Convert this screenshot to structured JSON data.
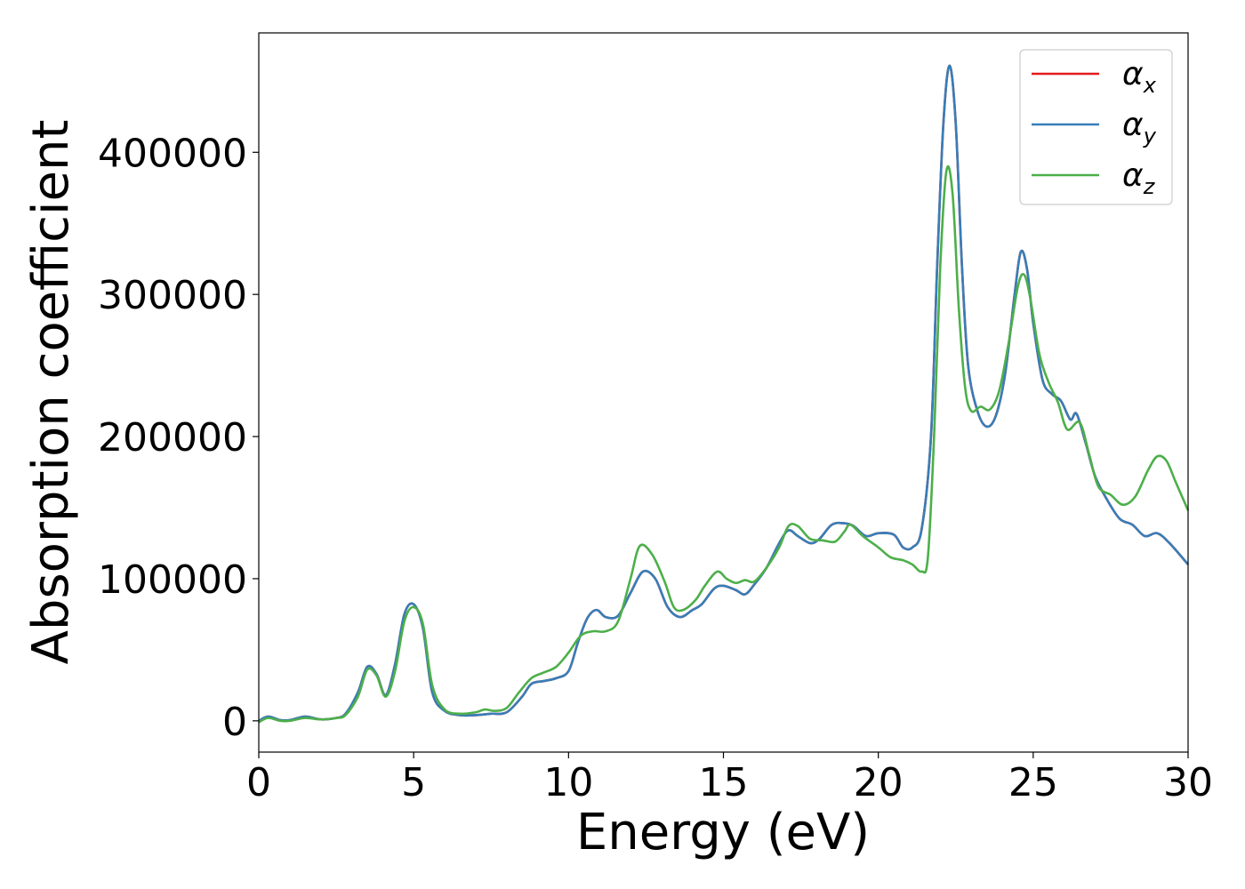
{
  "chart_data": {
    "type": "line",
    "xlabel": "Energy (eV)",
    "ylabel": "Absorption coefficient",
    "xlim": [
      0,
      30
    ],
    "ylim": [
      -22000,
      484000
    ],
    "xticks": [
      0,
      5,
      10,
      15,
      20,
      25,
      30
    ],
    "xtick_labels": [
      "0",
      "5",
      "10",
      "15",
      "20",
      "25",
      "30"
    ],
    "yticks": [
      0,
      100000,
      200000,
      300000,
      400000
    ],
    "ytick_labels": [
      "0",
      "100000",
      "200000",
      "300000",
      "400000"
    ],
    "grid": false,
    "legend_position": "top-right",
    "series": [
      {
        "name": "α",
        "subscript": "x",
        "color": "#e41a1c",
        "points": [
          [
            0,
            0
          ],
          [
            0.3,
            3000
          ],
          [
            0.7,
            500
          ],
          [
            1.0,
            500
          ],
          [
            1.5,
            3000
          ],
          [
            2.0,
            1000
          ],
          [
            2.5,
            2000
          ],
          [
            2.8,
            5000
          ],
          [
            3.2,
            20000
          ],
          [
            3.5,
            38000
          ],
          [
            3.8,
            33000
          ],
          [
            4.1,
            18000
          ],
          [
            4.4,
            40000
          ],
          [
            4.7,
            75000
          ],
          [
            5.0,
            82000
          ],
          [
            5.3,
            65000
          ],
          [
            5.6,
            20000
          ],
          [
            6.0,
            7000
          ],
          [
            6.5,
            4000
          ],
          [
            7.0,
            4000
          ],
          [
            7.5,
            5000
          ],
          [
            8.0,
            6000
          ],
          [
            8.5,
            17000
          ],
          [
            8.8,
            26000
          ],
          [
            9.2,
            28000
          ],
          [
            9.6,
            30000
          ],
          [
            10.0,
            35000
          ],
          [
            10.3,
            55000
          ],
          [
            10.6,
            72000
          ],
          [
            10.9,
            78000
          ],
          [
            11.2,
            73000
          ],
          [
            11.6,
            74000
          ],
          [
            12.0,
            90000
          ],
          [
            12.4,
            105000
          ],
          [
            12.8,
            100000
          ],
          [
            13.2,
            80000
          ],
          [
            13.6,
            73000
          ],
          [
            14.0,
            78000
          ],
          [
            14.3,
            82000
          ],
          [
            14.7,
            93000
          ],
          [
            15.0,
            95000
          ],
          [
            15.4,
            92000
          ],
          [
            15.7,
            89000
          ],
          [
            16.0,
            96000
          ],
          [
            16.4,
            108000
          ],
          [
            16.8,
            125000
          ],
          [
            17.1,
            134000
          ],
          [
            17.4,
            130000
          ],
          [
            17.8,
            125000
          ],
          [
            18.1,
            128000
          ],
          [
            18.5,
            138000
          ],
          [
            18.9,
            139000
          ],
          [
            19.2,
            137000
          ],
          [
            19.6,
            130000
          ],
          [
            20.0,
            132000
          ],
          [
            20.5,
            131000
          ],
          [
            20.8,
            122000
          ],
          [
            21.1,
            122000
          ],
          [
            21.4,
            135000
          ],
          [
            21.7,
            200000
          ],
          [
            21.9,
            320000
          ],
          [
            22.1,
            420000
          ],
          [
            22.3,
            461000
          ],
          [
            22.5,
            420000
          ],
          [
            22.7,
            320000
          ],
          [
            22.9,
            250000
          ],
          [
            23.2,
            218000
          ],
          [
            23.5,
            207000
          ],
          [
            23.8,
            215000
          ],
          [
            24.1,
            245000
          ],
          [
            24.4,
            300000
          ],
          [
            24.6,
            330000
          ],
          [
            24.8,
            318000
          ],
          [
            25.0,
            280000
          ],
          [
            25.3,
            240000
          ],
          [
            25.6,
            230000
          ],
          [
            25.9,
            225000
          ],
          [
            26.2,
            212000
          ],
          [
            26.4,
            216000
          ],
          [
            26.7,
            195000
          ],
          [
            27.0,
            172000
          ],
          [
            27.4,
            155000
          ],
          [
            27.8,
            142000
          ],
          [
            28.2,
            138000
          ],
          [
            28.6,
            130000
          ],
          [
            29.0,
            132000
          ],
          [
            29.4,
            125000
          ],
          [
            30.0,
            110000
          ]
        ]
      },
      {
        "name": "α",
        "subscript": "y",
        "color": "#377eb8",
        "points": [
          [
            0,
            0
          ],
          [
            0.3,
            3000
          ],
          [
            0.7,
            500
          ],
          [
            1.0,
            500
          ],
          [
            1.5,
            3000
          ],
          [
            2.0,
            1000
          ],
          [
            2.5,
            2000
          ],
          [
            2.8,
            5000
          ],
          [
            3.2,
            20000
          ],
          [
            3.5,
            38000
          ],
          [
            3.8,
            33000
          ],
          [
            4.1,
            18000
          ],
          [
            4.4,
            40000
          ],
          [
            4.7,
            75000
          ],
          [
            5.0,
            82000
          ],
          [
            5.3,
            65000
          ],
          [
            5.6,
            20000
          ],
          [
            6.0,
            7000
          ],
          [
            6.5,
            4000
          ],
          [
            7.0,
            4000
          ],
          [
            7.5,
            5000
          ],
          [
            8.0,
            6000
          ],
          [
            8.5,
            17000
          ],
          [
            8.8,
            26000
          ],
          [
            9.2,
            28000
          ],
          [
            9.6,
            30000
          ],
          [
            10.0,
            35000
          ],
          [
            10.3,
            55000
          ],
          [
            10.6,
            72000
          ],
          [
            10.9,
            78000
          ],
          [
            11.2,
            73000
          ],
          [
            11.6,
            74000
          ],
          [
            12.0,
            90000
          ],
          [
            12.4,
            105000
          ],
          [
            12.8,
            100000
          ],
          [
            13.2,
            80000
          ],
          [
            13.6,
            73000
          ],
          [
            14.0,
            78000
          ],
          [
            14.3,
            82000
          ],
          [
            14.7,
            93000
          ],
          [
            15.0,
            95000
          ],
          [
            15.4,
            92000
          ],
          [
            15.7,
            89000
          ],
          [
            16.0,
            96000
          ],
          [
            16.4,
            108000
          ],
          [
            16.8,
            125000
          ],
          [
            17.1,
            134000
          ],
          [
            17.4,
            130000
          ],
          [
            17.8,
            125000
          ],
          [
            18.1,
            128000
          ],
          [
            18.5,
            138000
          ],
          [
            18.9,
            139000
          ],
          [
            19.2,
            137000
          ],
          [
            19.6,
            130000
          ],
          [
            20.0,
            132000
          ],
          [
            20.5,
            131000
          ],
          [
            20.8,
            122000
          ],
          [
            21.1,
            122000
          ],
          [
            21.4,
            135000
          ],
          [
            21.7,
            200000
          ],
          [
            21.9,
            320000
          ],
          [
            22.1,
            420000
          ],
          [
            22.3,
            461000
          ],
          [
            22.5,
            420000
          ],
          [
            22.7,
            320000
          ],
          [
            22.9,
            250000
          ],
          [
            23.2,
            218000
          ],
          [
            23.5,
            207000
          ],
          [
            23.8,
            215000
          ],
          [
            24.1,
            245000
          ],
          [
            24.4,
            300000
          ],
          [
            24.6,
            330000
          ],
          [
            24.8,
            318000
          ],
          [
            25.0,
            280000
          ],
          [
            25.3,
            240000
          ],
          [
            25.6,
            230000
          ],
          [
            25.9,
            225000
          ],
          [
            26.2,
            212000
          ],
          [
            26.4,
            216000
          ],
          [
            26.7,
            195000
          ],
          [
            27.0,
            172000
          ],
          [
            27.4,
            155000
          ],
          [
            27.8,
            142000
          ],
          [
            28.2,
            138000
          ],
          [
            28.6,
            130000
          ],
          [
            29.0,
            132000
          ],
          [
            29.4,
            125000
          ],
          [
            30.0,
            110000
          ]
        ]
      },
      {
        "name": "α",
        "subscript": "z",
        "color": "#4daf4a",
        "points": [
          [
            0,
            -1000
          ],
          [
            0.3,
            2000
          ],
          [
            0.7,
            0
          ],
          [
            1.0,
            0
          ],
          [
            1.5,
            2000
          ],
          [
            2.0,
            1000
          ],
          [
            2.5,
            2000
          ],
          [
            2.8,
            4000
          ],
          [
            3.2,
            17000
          ],
          [
            3.5,
            36000
          ],
          [
            3.8,
            32000
          ],
          [
            4.1,
            17000
          ],
          [
            4.4,
            35000
          ],
          [
            4.7,
            70000
          ],
          [
            5.0,
            80000
          ],
          [
            5.3,
            68000
          ],
          [
            5.6,
            25000
          ],
          [
            6.0,
            8000
          ],
          [
            6.5,
            5000
          ],
          [
            7.0,
            6000
          ],
          [
            7.3,
            8000
          ],
          [
            7.6,
            7000
          ],
          [
            8.0,
            9000
          ],
          [
            8.4,
            20000
          ],
          [
            8.8,
            30000
          ],
          [
            9.2,
            34000
          ],
          [
            9.6,
            38000
          ],
          [
            10.0,
            48000
          ],
          [
            10.4,
            60000
          ],
          [
            10.8,
            63000
          ],
          [
            11.2,
            63000
          ],
          [
            11.6,
            70000
          ],
          [
            12.0,
            100000
          ],
          [
            12.3,
            123000
          ],
          [
            12.7,
            117000
          ],
          [
            13.1,
            98000
          ],
          [
            13.4,
            80000
          ],
          [
            13.7,
            78000
          ],
          [
            14.1,
            85000
          ],
          [
            14.4,
            95000
          ],
          [
            14.8,
            105000
          ],
          [
            15.1,
            100000
          ],
          [
            15.4,
            97000
          ],
          [
            15.7,
            99000
          ],
          [
            16.0,
            98000
          ],
          [
            16.4,
            108000
          ],
          [
            16.8,
            122000
          ],
          [
            17.1,
            137000
          ],
          [
            17.4,
            137000
          ],
          [
            17.8,
            128000
          ],
          [
            18.2,
            127000
          ],
          [
            18.6,
            126000
          ],
          [
            18.9,
            133000
          ],
          [
            19.1,
            138000
          ],
          [
            19.5,
            130000
          ],
          [
            20.0,
            122000
          ],
          [
            20.4,
            115000
          ],
          [
            20.8,
            113000
          ],
          [
            21.1,
            110000
          ],
          [
            21.4,
            105000
          ],
          [
            21.6,
            115000
          ],
          [
            21.8,
            200000
          ],
          [
            22.0,
            320000
          ],
          [
            22.2,
            387000
          ],
          [
            22.4,
            370000
          ],
          [
            22.6,
            290000
          ],
          [
            22.8,
            235000
          ],
          [
            23.0,
            218000
          ],
          [
            23.3,
            221000
          ],
          [
            23.6,
            219000
          ],
          [
            23.9,
            232000
          ],
          [
            24.2,
            265000
          ],
          [
            24.5,
            305000
          ],
          [
            24.7,
            314000
          ],
          [
            24.9,
            298000
          ],
          [
            25.2,
            258000
          ],
          [
            25.5,
            238000
          ],
          [
            25.8,
            224000
          ],
          [
            26.1,
            205000
          ],
          [
            26.5,
            210000
          ],
          [
            26.8,
            188000
          ],
          [
            27.1,
            165000
          ],
          [
            27.5,
            159000
          ],
          [
            27.9,
            152000
          ],
          [
            28.3,
            158000
          ],
          [
            28.7,
            176000
          ],
          [
            29.0,
            186000
          ],
          [
            29.3,
            183000
          ],
          [
            29.6,
            168000
          ],
          [
            30.0,
            148000
          ]
        ]
      }
    ]
  }
}
